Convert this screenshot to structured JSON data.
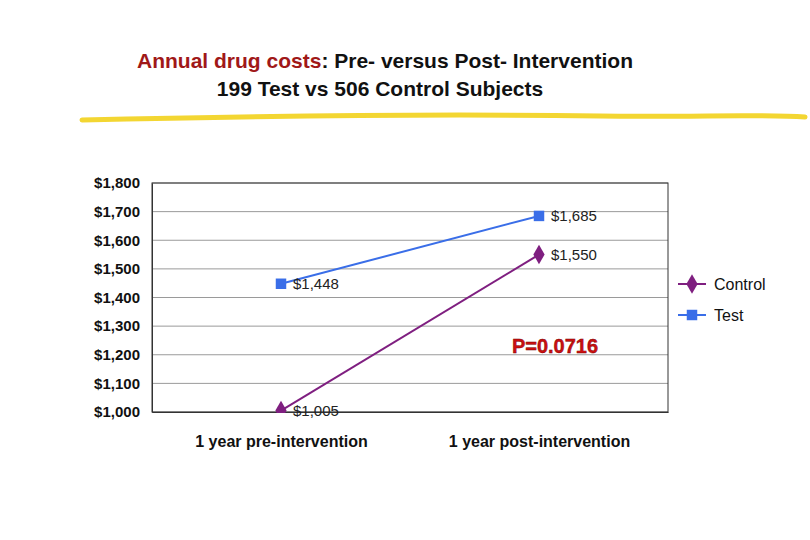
{
  "chart_data": {
    "type": "line",
    "title": "Annual drug costs: Pre- versus Post- Intervention",
    "subtitle": "199 Test vs 506 Control Subjects",
    "annotation": "P=0.0716",
    "categories": [
      "1 year pre-intervention",
      "1 year post-intervention"
    ],
    "series": [
      {
        "name": "Control",
        "color": "#7f1f80",
        "marker": "diamond",
        "line_style": "solid",
        "values": [
          1005,
          1550
        ],
        "value_labels": [
          "$1,005",
          "$1,550"
        ]
      },
      {
        "name": "Test",
        "color": "#3a6ee8",
        "marker": "square",
        "line_style": "solid",
        "values": [
          1448,
          1685
        ],
        "value_labels": [
          "$1,448",
          "$1,685"
        ]
      }
    ],
    "ylim": [
      1000,
      1800
    ],
    "yticks": [
      {
        "value": 1000,
        "label": "$1,000"
      },
      {
        "value": 1100,
        "label": "$1,100"
      },
      {
        "value": 1200,
        "label": "$1,200"
      },
      {
        "value": 1300,
        "label": "$1,300"
      },
      {
        "value": 1400,
        "label": "$1,400"
      },
      {
        "value": 1500,
        "label": "$1,500"
      },
      {
        "value": 1600,
        "label": "$1,600"
      },
      {
        "value": 1700,
        "label": "$1,700"
      },
      {
        "value": 1800,
        "label": "$1,800"
      }
    ],
    "grid": true,
    "legend": "right",
    "data_labels": true
  }
}
